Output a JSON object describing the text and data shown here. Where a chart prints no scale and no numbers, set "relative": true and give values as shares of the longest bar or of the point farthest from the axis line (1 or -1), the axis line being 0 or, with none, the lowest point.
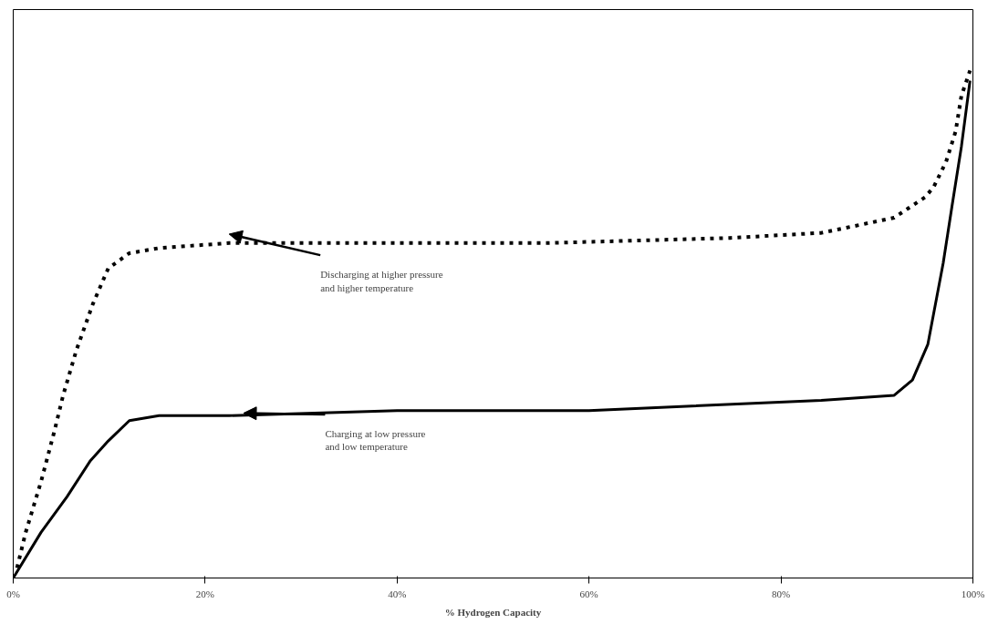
{
  "chart_data": {
    "type": "line",
    "relative": true,
    "xlabel": "% Hydrogen Capacity",
    "xlim": [
      0,
      100
    ],
    "xticks": [
      {
        "value": 0,
        "label": "0%"
      },
      {
        "value": 20,
        "label": "20%"
      },
      {
        "value": 40,
        "label": "40%"
      },
      {
        "value": 60,
        "label": "60%"
      },
      {
        "value": 80,
        "label": "80%"
      },
      {
        "value": 100,
        "label": "100%"
      }
    ],
    "grid": false,
    "marker": "none",
    "series": [
      {
        "color": "#000000",
        "line_style": "dotted",
        "x": [
          0.4,
          1.3,
          2.9,
          4.3,
          5.2,
          6.6,
          8.3,
          9.9,
          12.1,
          15.2,
          22.5,
          55.7,
          74.7,
          84.2,
          89.3,
          91.8,
          93.4,
          95.0,
          95.9,
          97.2,
          98.2,
          98.8,
          99.7
        ],
        "values": [
          0.02,
          0.09,
          0.19,
          0.29,
          0.36,
          0.45,
          0.54,
          0.61,
          0.64,
          0.65,
          0.66,
          0.66,
          0.67,
          0.68,
          0.7,
          0.71,
          0.73,
          0.75,
          0.77,
          0.82,
          0.88,
          0.95,
          1.0
        ]
      },
      {
        "color": "#000000",
        "line_style": "solid",
        "x": [
          0,
          2.9,
          5.6,
          8.0,
          9.9,
          12.1,
          15.2,
          22.5,
          40,
          60,
          84.2,
          91.8,
          93.7,
          95.3,
          96.9,
          97.8,
          98.8,
          99.7
        ],
        "values": [
          0,
          0.09,
          0.16,
          0.23,
          0.27,
          0.31,
          0.32,
          0.32,
          0.33,
          0.33,
          0.35,
          0.36,
          0.39,
          0.46,
          0.62,
          0.73,
          0.85,
          0.98
        ]
      }
    ],
    "annotations": [
      "Discharging at higher pressure\nand higher temperature",
      "Charging at low pressure\n and low temperature"
    ]
  }
}
